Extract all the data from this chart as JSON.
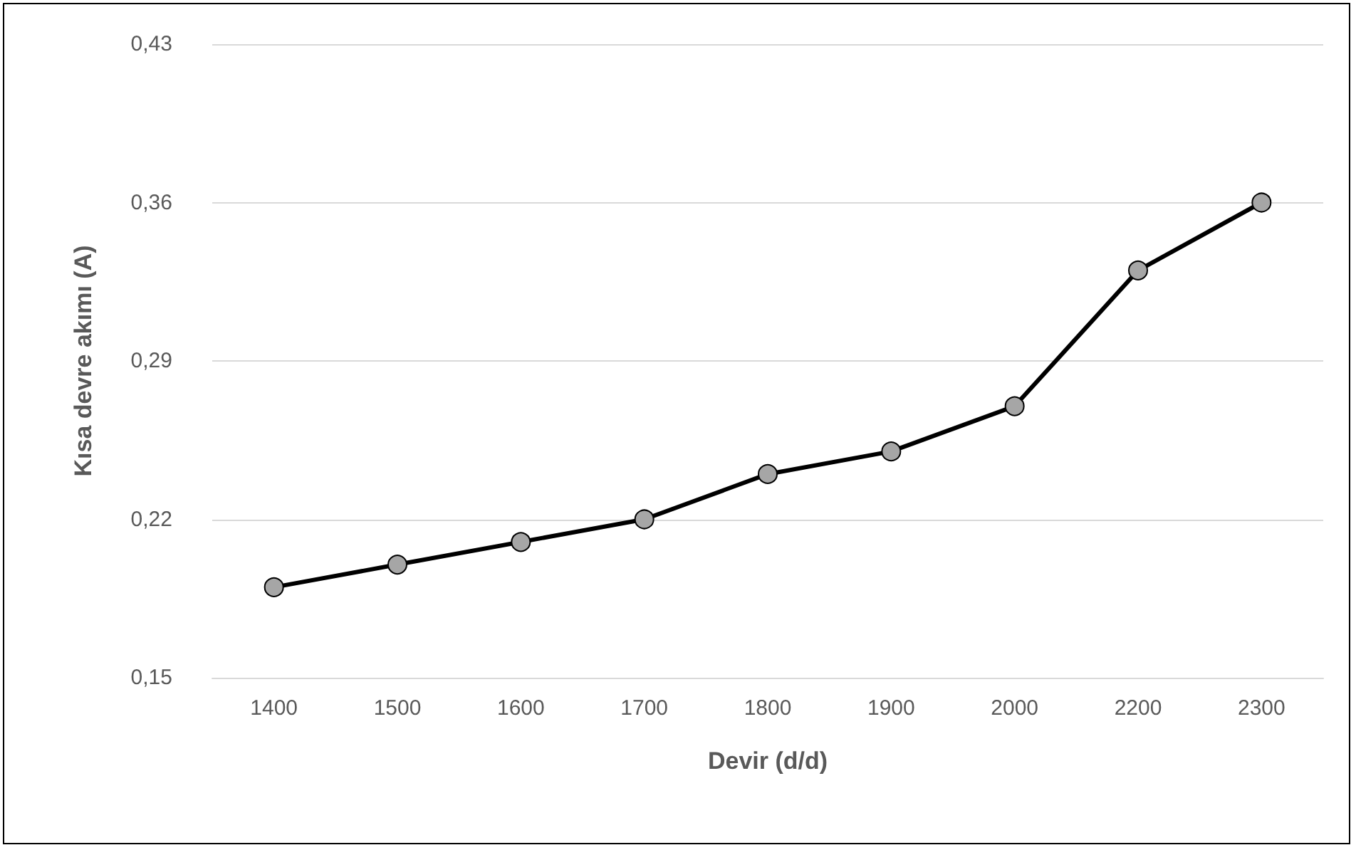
{
  "chart_data": {
    "type": "line",
    "xlabel": "Devir (d/d)",
    "ylabel": "Kısa devre akımı (A)",
    "categories": [
      "1400",
      "1500",
      "1600",
      "1700",
      "1800",
      "1900",
      "2000",
      "2200",
      "2300"
    ],
    "series": [
      {
        "color": "#000000",
        "values": [
          0.19,
          0.2,
          0.21,
          0.22,
          0.24,
          0.25,
          0.27,
          0.33,
          0.36
        ]
      }
    ],
    "ylim": [
      0.15,
      0.43
    ],
    "yticks": [
      {
        "value": 0.15,
        "label": "0,15"
      },
      {
        "value": 0.22,
        "label": "0,22"
      },
      {
        "value": 0.29,
        "label": "0,29"
      },
      {
        "value": 0.36,
        "label": "0,36"
      },
      {
        "value": 0.43,
        "label": "0,43"
      }
    ],
    "grid": "y",
    "marker": "circle",
    "line_style": "solid"
  }
}
